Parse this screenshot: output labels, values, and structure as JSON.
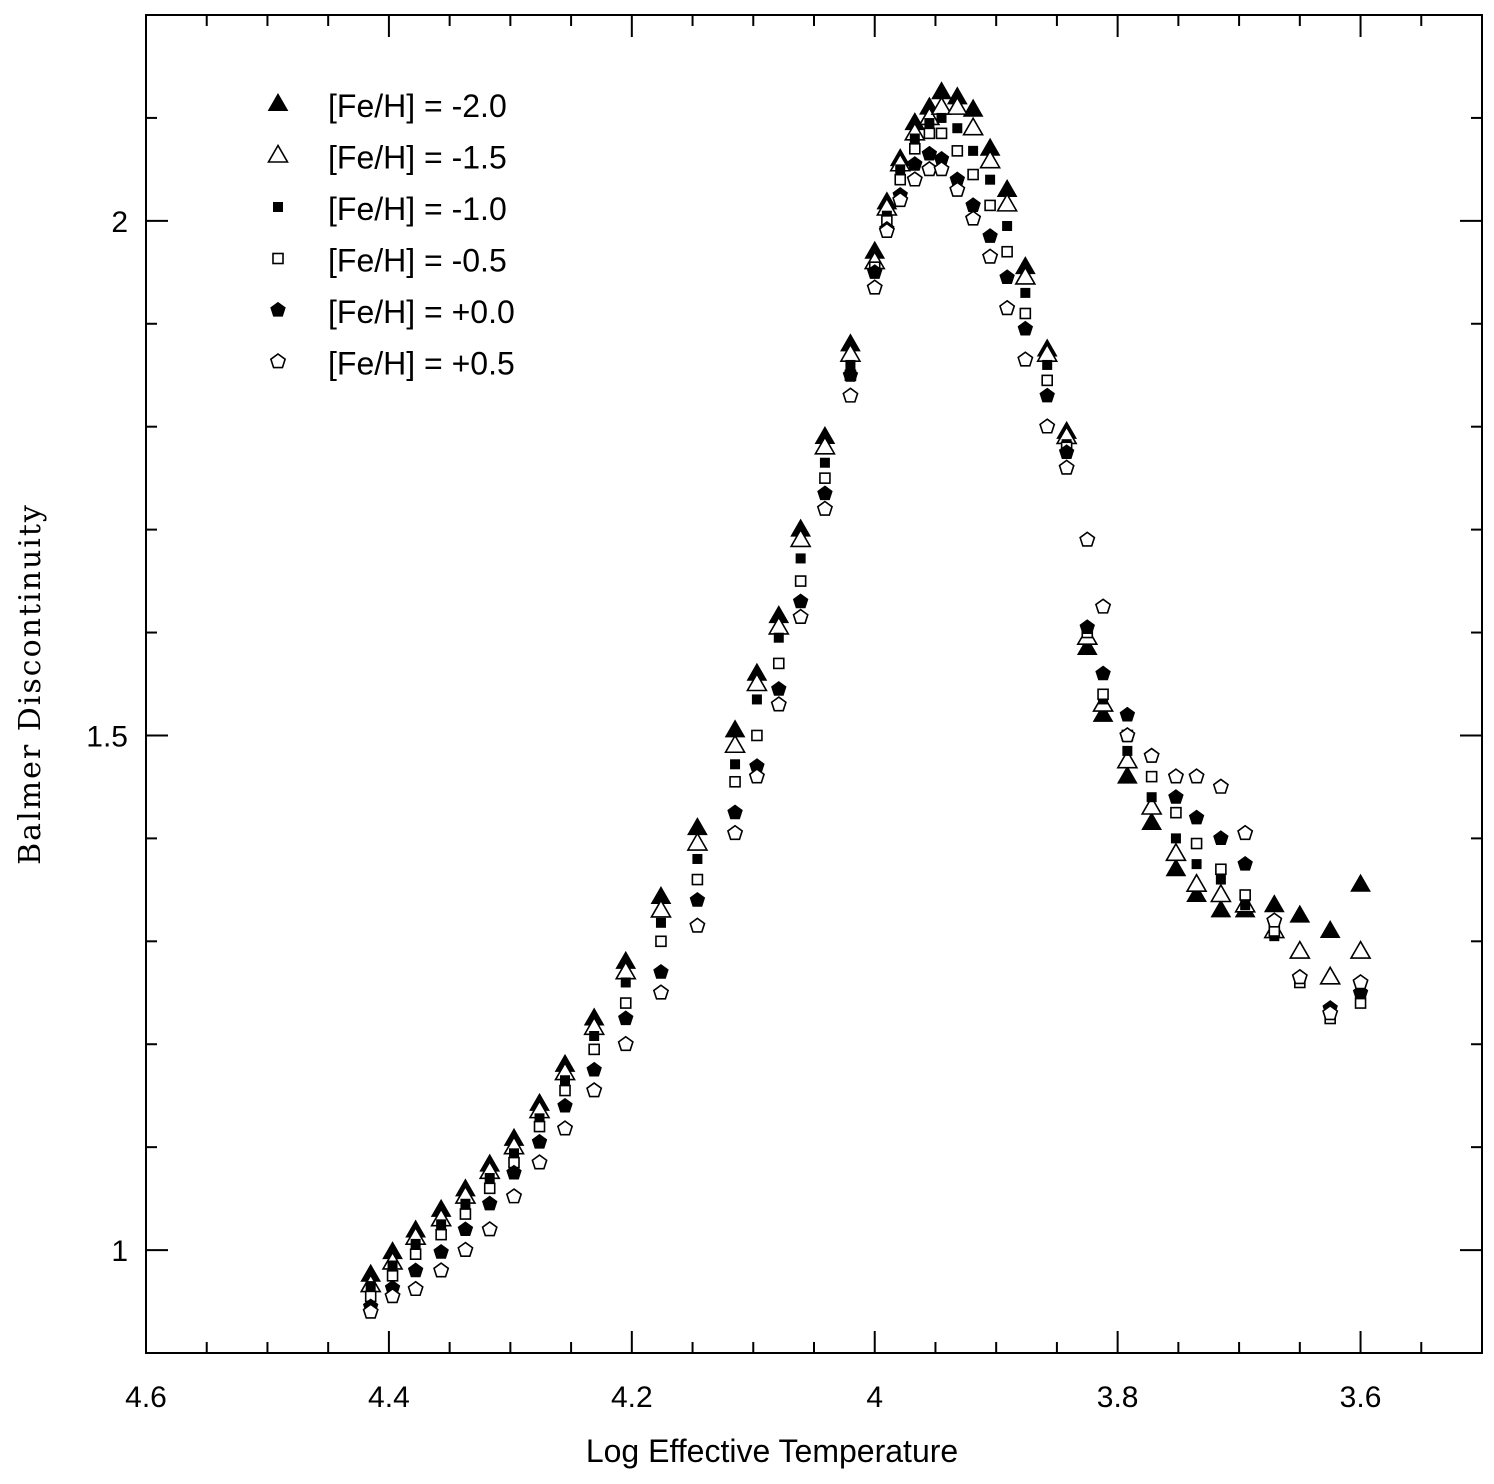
{
  "chart_data": {
    "type": "scatter",
    "title": "",
    "xlabel": "Log Effective Temperature",
    "ylabel": "Balmer Discontinuity",
    "xlim": [
      4.6,
      3.5
    ],
    "ylim": [
      0.9,
      2.2
    ],
    "x_reversed": true,
    "xticks": [
      4.6,
      4.4,
      4.2,
      4,
      3.8,
      3.6
    ],
    "xtick_labels": [
      "4.6",
      "4.4",
      "4.2",
      "4",
      "3.8",
      "3.6"
    ],
    "yticks": [
      1,
      1.5,
      2
    ],
    "ytick_labels": [
      "1",
      "1.5",
      "2"
    ],
    "legend_position": "top-left",
    "grid": false,
    "series": [
      {
        "name": "[Fe/H] = -2.0",
        "marker": "triangle-filled",
        "x": [
          4.415,
          4.397,
          4.378,
          4.357,
          4.337,
          4.317,
          4.297,
          4.276,
          4.255,
          4.231,
          4.205,
          4.176,
          4.146,
          4.115,
          4.097,
          4.079,
          4.061,
          4.041,
          4.02,
          4.0,
          3.99,
          3.979,
          3.967,
          3.955,
          3.945,
          3.932,
          3.919,
          3.905,
          3.891,
          3.876,
          3.858,
          3.842,
          3.825,
          3.812,
          3.792,
          3.772,
          3.752,
          3.735,
          3.715,
          3.695,
          3.671,
          3.65,
          3.625,
          3.6
        ],
        "y": [
          0.976,
          0.998,
          1.019,
          1.039,
          1.059,
          1.083,
          1.108,
          1.142,
          1.18,
          1.225,
          1.28,
          1.343,
          1.41,
          1.505,
          1.56,
          1.616,
          1.7,
          1.79,
          1.88,
          1.97,
          2.018,
          2.06,
          2.095,
          2.11,
          2.125,
          2.12,
          2.108,
          2.07,
          2.03,
          1.955,
          1.875,
          1.795,
          1.585,
          1.52,
          1.46,
          1.415,
          1.37,
          1.345,
          1.33,
          1.33,
          1.335,
          1.325,
          1.31,
          1.355
        ]
      },
      {
        "name": "[Fe/H] = -1.5",
        "marker": "triangle-open",
        "x": [
          4.415,
          4.397,
          4.378,
          4.357,
          4.337,
          4.317,
          4.297,
          4.276,
          4.255,
          4.231,
          4.205,
          4.176,
          4.146,
          4.115,
          4.097,
          4.079,
          4.061,
          4.041,
          4.02,
          4.0,
          3.99,
          3.979,
          3.967,
          3.955,
          3.945,
          3.932,
          3.919,
          3.905,
          3.891,
          3.876,
          3.858,
          3.842,
          3.825,
          3.812,
          3.792,
          3.772,
          3.752,
          3.735,
          3.715,
          3.695,
          3.671,
          3.65,
          3.625,
          3.6
        ],
        "y": [
          0.966,
          0.988,
          1.012,
          1.03,
          1.052,
          1.076,
          1.1,
          1.135,
          1.172,
          1.216,
          1.27,
          1.33,
          1.395,
          1.49,
          1.55,
          1.605,
          1.69,
          1.78,
          1.87,
          1.96,
          2.012,
          2.055,
          2.085,
          2.1,
          2.11,
          2.11,
          2.09,
          2.058,
          2.016,
          1.945,
          1.87,
          1.79,
          1.595,
          1.53,
          1.475,
          1.43,
          1.385,
          1.355,
          1.345,
          1.335,
          1.31,
          1.29,
          1.265,
          1.29
        ]
      },
      {
        "name": "[Fe/H] = -1.0",
        "marker": "square-filled",
        "x": [
          4.415,
          4.397,
          4.378,
          4.357,
          4.337,
          4.317,
          4.297,
          4.276,
          4.255,
          4.231,
          4.205,
          4.176,
          4.146,
          4.115,
          4.097,
          4.079,
          4.061,
          4.041,
          4.02,
          4.0,
          3.99,
          3.979,
          3.967,
          3.955,
          3.945,
          3.932,
          3.919,
          3.905,
          3.891,
          3.876,
          3.858,
          3.842,
          3.825,
          3.812,
          3.792,
          3.772,
          3.752,
          3.735,
          3.715,
          3.695,
          3.671,
          3.65,
          3.625,
          3.6
        ],
        "y": [
          0.965,
          0.985,
          1.006,
          1.025,
          1.045,
          1.07,
          1.094,
          1.128,
          1.165,
          1.208,
          1.26,
          1.318,
          1.38,
          1.472,
          1.535,
          1.595,
          1.672,
          1.765,
          1.86,
          1.955,
          2.005,
          2.05,
          2.08,
          2.095,
          2.1,
          2.09,
          2.068,
          2.04,
          1.995,
          1.93,
          1.86,
          1.783,
          1.6,
          1.535,
          1.485,
          1.44,
          1.4,
          1.375,
          1.36,
          1.335,
          1.305,
          1.265,
          1.23,
          1.245
        ]
      },
      {
        "name": "[Fe/H] = -0.5",
        "marker": "square-open",
        "x": [
          4.415,
          4.397,
          4.378,
          4.357,
          4.337,
          4.317,
          4.297,
          4.276,
          4.255,
          4.231,
          4.205,
          4.176,
          4.146,
          4.115,
          4.097,
          4.079,
          4.061,
          4.041,
          4.02,
          4.0,
          3.99,
          3.979,
          3.967,
          3.955,
          3.945,
          3.932,
          3.919,
          3.905,
          3.891,
          3.876,
          3.858,
          3.842,
          3.825,
          3.812,
          3.792,
          3.772,
          3.752,
          3.735,
          3.715,
          3.695,
          3.671,
          3.65,
          3.625,
          3.6
        ],
        "y": [
          0.955,
          0.975,
          0.996,
          1.015,
          1.035,
          1.06,
          1.085,
          1.12,
          1.155,
          1.195,
          1.24,
          1.3,
          1.36,
          1.455,
          1.5,
          1.57,
          1.65,
          1.75,
          1.85,
          1.955,
          2.0,
          2.04,
          2.07,
          2.085,
          2.085,
          2.068,
          2.045,
          2.015,
          1.97,
          1.91,
          1.845,
          1.78,
          1.6,
          1.54,
          1.5,
          1.46,
          1.425,
          1.395,
          1.37,
          1.345,
          1.31,
          1.26,
          1.225,
          1.24
        ]
      },
      {
        "name": "[Fe/H] = +0.0",
        "marker": "pentagon-filled",
        "x": [
          4.415,
          4.397,
          4.378,
          4.357,
          4.337,
          4.317,
          4.297,
          4.276,
          4.255,
          4.231,
          4.205,
          4.176,
          4.146,
          4.115,
          4.097,
          4.079,
          4.061,
          4.041,
          4.02,
          4.0,
          3.99,
          3.979,
          3.967,
          3.955,
          3.945,
          3.932,
          3.919,
          3.905,
          3.891,
          3.876,
          3.858,
          3.842,
          3.825,
          3.812,
          3.792,
          3.772,
          3.752,
          3.735,
          3.715,
          3.695,
          3.671,
          3.65,
          3.625,
          3.6
        ],
        "y": [
          0.945,
          0.963,
          0.98,
          0.998,
          1.02,
          1.045,
          1.075,
          1.105,
          1.14,
          1.175,
          1.225,
          1.27,
          1.34,
          1.425,
          1.47,
          1.545,
          1.63,
          1.735,
          1.85,
          1.95,
          1.992,
          2.025,
          2.055,
          2.065,
          2.06,
          2.04,
          2.015,
          1.985,
          1.945,
          1.895,
          1.83,
          1.775,
          1.605,
          1.56,
          1.52,
          1.48,
          1.44,
          1.42,
          1.4,
          1.375,
          1.32,
          1.265,
          1.235,
          1.25
        ]
      },
      {
        "name": "[Fe/H] = +0.5",
        "marker": "pentagon-open",
        "x": [
          4.415,
          4.397,
          4.378,
          4.357,
          4.337,
          4.317,
          4.297,
          4.276,
          4.255,
          4.231,
          4.205,
          4.176,
          4.146,
          4.115,
          4.097,
          4.079,
          4.061,
          4.041,
          4.02,
          4.0,
          3.99,
          3.979,
          3.967,
          3.955,
          3.945,
          3.932,
          3.919,
          3.905,
          3.891,
          3.876,
          3.858,
          3.842,
          3.825,
          3.812,
          3.792,
          3.772,
          3.752,
          3.735,
          3.715,
          3.695,
          3.671,
          3.65,
          3.625,
          3.6
        ],
        "y": [
          0.94,
          0.955,
          0.962,
          0.98,
          1.0,
          1.02,
          1.052,
          1.085,
          1.118,
          1.155,
          1.2,
          1.25,
          1.315,
          1.405,
          1.46,
          1.53,
          1.615,
          1.72,
          1.83,
          1.935,
          1.99,
          2.02,
          2.04,
          2.05,
          2.05,
          2.03,
          2.002,
          1.965,
          1.915,
          1.865,
          1.8,
          1.76,
          1.69,
          1.625,
          1.5,
          1.48,
          1.46,
          1.46,
          1.45,
          1.405,
          1.32,
          1.265,
          1.23,
          1.26
        ]
      }
    ]
  }
}
